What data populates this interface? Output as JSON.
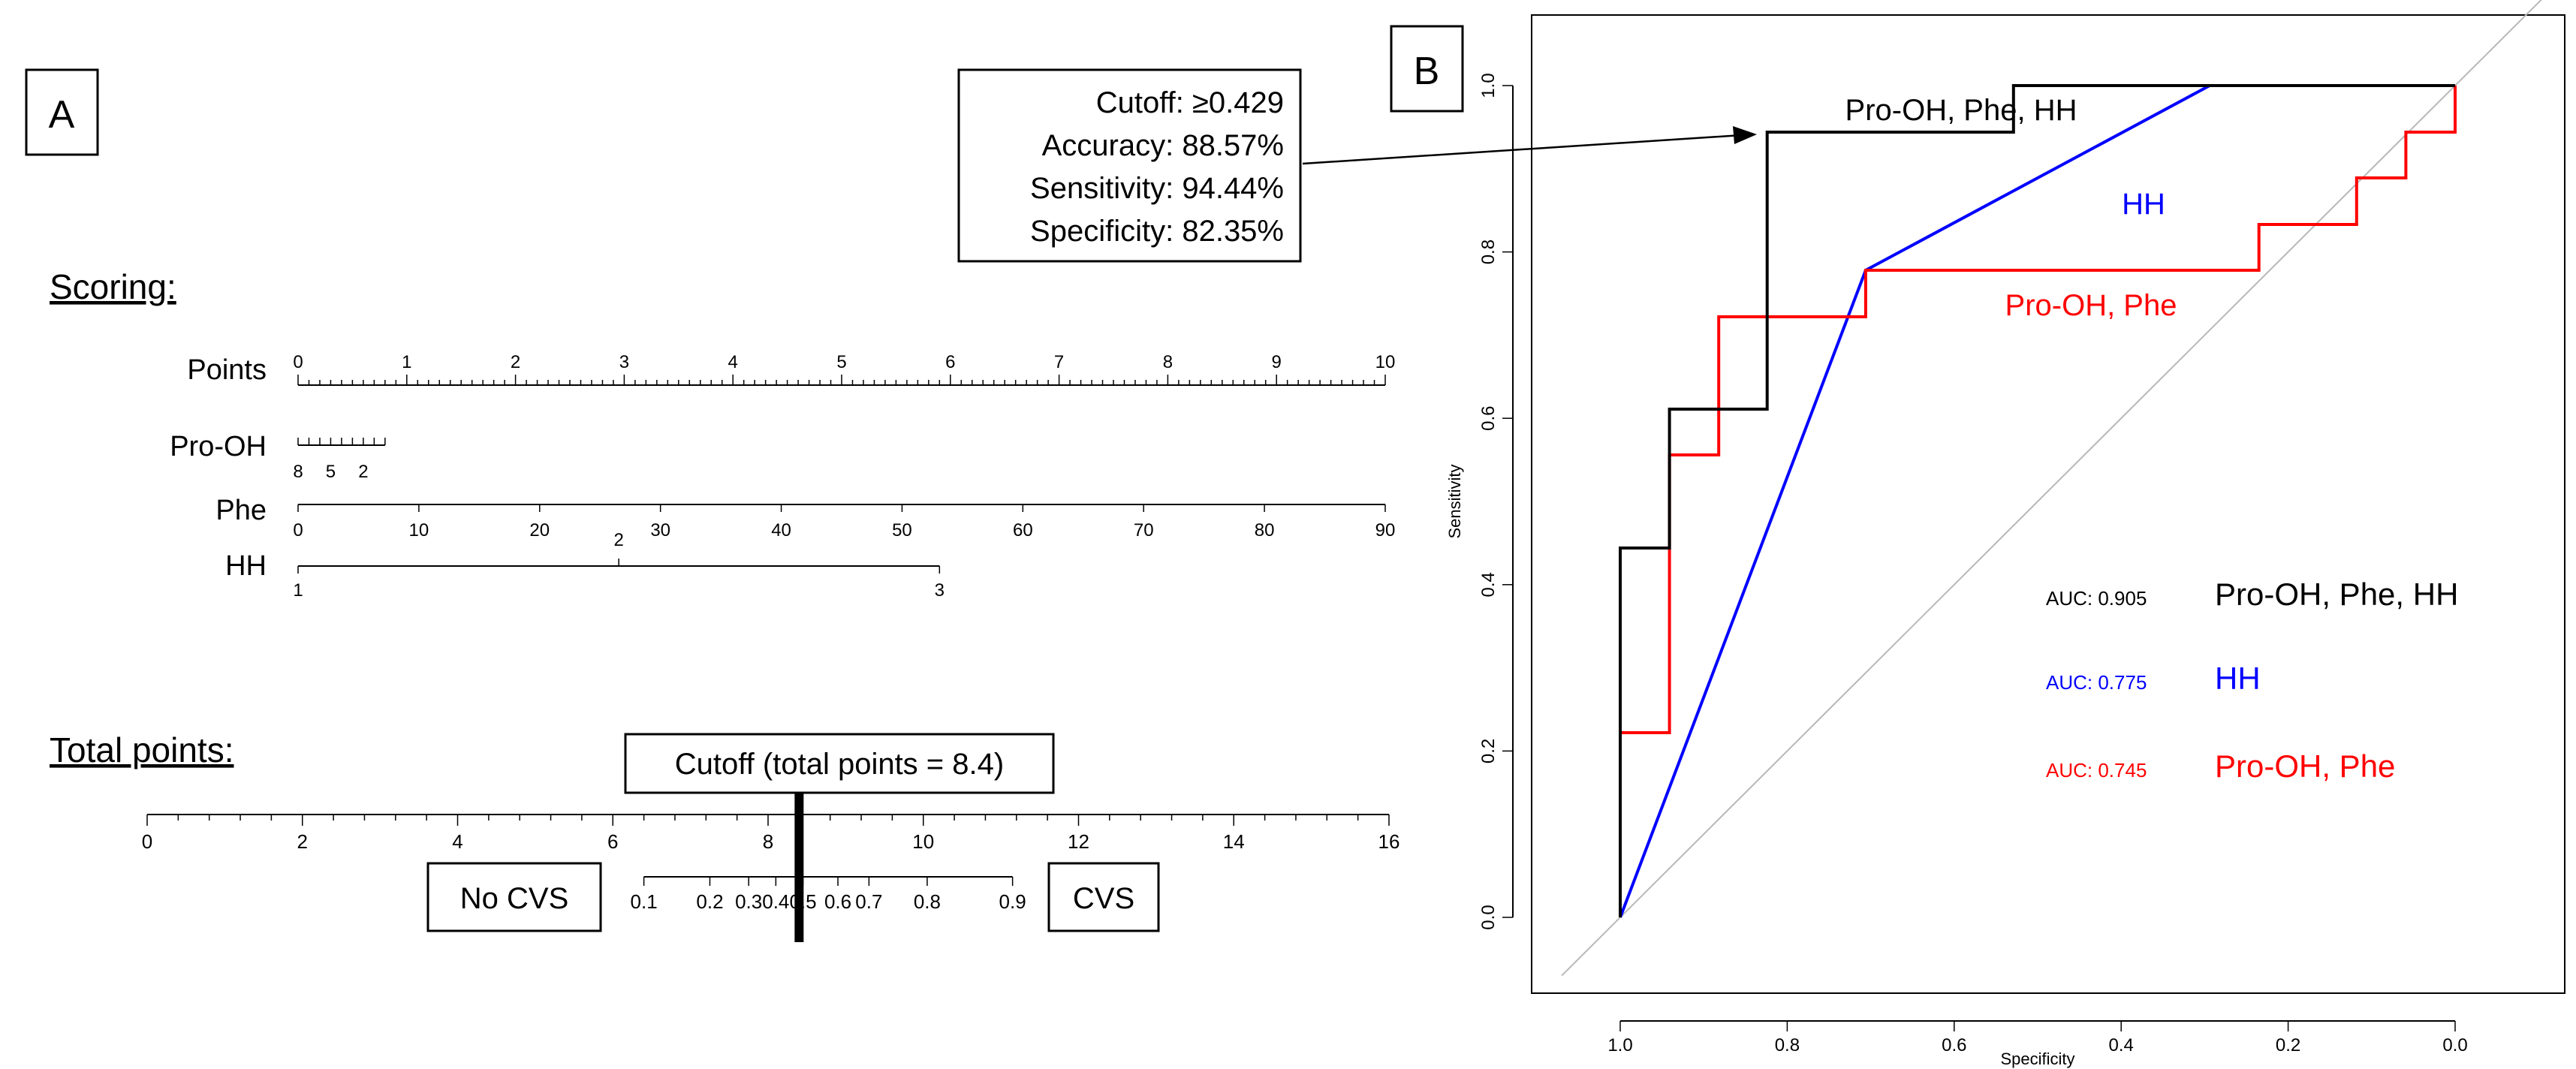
{
  "panel_a": {
    "label": "A",
    "scoring_heading": "Scoring:",
    "total_heading": "Total points:",
    "cutoff_box": "Cutoff (total points = 8.4)",
    "no_cvs_label": "No CVS",
    "cvs_label": "CVS"
  },
  "panel_b": {
    "label": "B",
    "callout": {
      "cutoff": "Cutoff: ≥0.429",
      "accuracy": "Accuracy: 88.57%",
      "sensitivity": "Sensitivity: 94.44%",
      "specificity": "Specificity: 82.35%"
    }
  },
  "chart_data": [
    {
      "type": "nomogram",
      "title": "Scoring:",
      "scales": [
        {
          "name": "Points",
          "min": 0,
          "max": 10,
          "major_ticks": [
            0,
            1,
            2,
            3,
            4,
            5,
            6,
            7,
            8,
            9,
            10
          ],
          "tick_labels": [
            "0",
            "1",
            "2",
            "3",
            "4",
            "5",
            "6",
            "7",
            "8",
            "9",
            "10"
          ],
          "minor_step": 0.1
        },
        {
          "name": "Pro-OH",
          "points_range": [
            0,
            0.8
          ],
          "major_ticks": [
            0,
            0.1,
            0.2,
            0.3,
            0.4,
            0.5,
            0.6,
            0.7,
            0.8
          ],
          "tick_labels": [
            {
              "label": "8",
              "points": 0
            },
            {
              "label": "5",
              "points": 0.3
            },
            {
              "label": "2",
              "points": 0.6
            }
          ]
        },
        {
          "name": "Phe",
          "min": 0,
          "max": 90,
          "points_range": [
            0,
            10
          ],
          "tick_labels": [
            "0",
            "10",
            "20",
            "30",
            "40",
            "50",
            "60",
            "70",
            "80",
            "90"
          ]
        },
        {
          "name": "HH",
          "points_range": [
            0,
            5.9
          ],
          "tick_labels": [
            {
              "label": "1",
              "points": 0
            },
            {
              "label": "2",
              "points": 2.95
            },
            {
              "label": "3",
              "points": 5.9
            }
          ]
        }
      ],
      "total_points": {
        "title": "Total points:",
        "min": 0,
        "max": 16,
        "tick_labels": [
          "0",
          "2",
          "4",
          "6",
          "8",
          "10",
          "12",
          "14",
          "16"
        ],
        "minor_step": 0.4
      },
      "probability": {
        "tick_labels": [
          "0.1",
          "0.2",
          "0.3",
          "0.4",
          "0.5",
          "0.6",
          "0.7",
          "0.8",
          "0.9"
        ],
        "total_points_at": [
          6.4,
          7.25,
          7.75,
          8.1,
          8.45,
          8.9,
          9.3,
          10.05,
          11.15
        ]
      },
      "cutoff_total_points": 8.4
    },
    {
      "type": "line",
      "subtype": "roc",
      "xlabel": "Specificity",
      "ylabel": "Sensitivity",
      "xlim": [
        1.0,
        0.0
      ],
      "ylim": [
        0.0,
        1.0
      ],
      "x_ticks": [
        "1.0",
        "0.8",
        "0.6",
        "0.4",
        "0.2",
        "0.0"
      ],
      "y_ticks": [
        "0.0",
        "0.2",
        "0.4",
        "0.6",
        "0.8",
        "1.0"
      ],
      "reference_line": true,
      "series": [
        {
          "name": "Pro-OH, Phe, HH",
          "color": "#000000",
          "auc_label": "AUC: 0.905",
          "specificity": [
            1.0,
            1.0,
            1.0,
            0.941,
            0.941,
            0.824,
            0.824,
            0.529,
            0.529,
            0.294,
            0.0
          ],
          "sensitivity": [
            0.0,
            0.222,
            0.444,
            0.444,
            0.611,
            0.611,
            0.944,
            0.944,
            1.0,
            1.0,
            1.0
          ]
        },
        {
          "name": "HH",
          "color": "#0000ff",
          "auc_label": "AUC: 0.775",
          "specificity": [
            1.0,
            0.706,
            0.294,
            0.0
          ],
          "sensitivity": [
            0.0,
            0.778,
            1.0,
            1.0
          ]
        },
        {
          "name": "Pro-OH, Phe",
          "color": "#ff0000",
          "auc_label": "AUC: 0.745",
          "specificity": [
            1.0,
            1.0,
            0.941,
            0.941,
            0.882,
            0.882,
            0.706,
            0.706,
            0.235,
            0.235,
            0.118,
            0.118,
            0.059,
            0.059,
            0.0,
            0.0
          ],
          "sensitivity": [
            0.0,
            0.222,
            0.222,
            0.556,
            0.556,
            0.722,
            0.722,
            0.778,
            0.778,
            0.833,
            0.833,
            0.889,
            0.889,
            0.944,
            0.944,
            1.0
          ]
        }
      ]
    }
  ]
}
